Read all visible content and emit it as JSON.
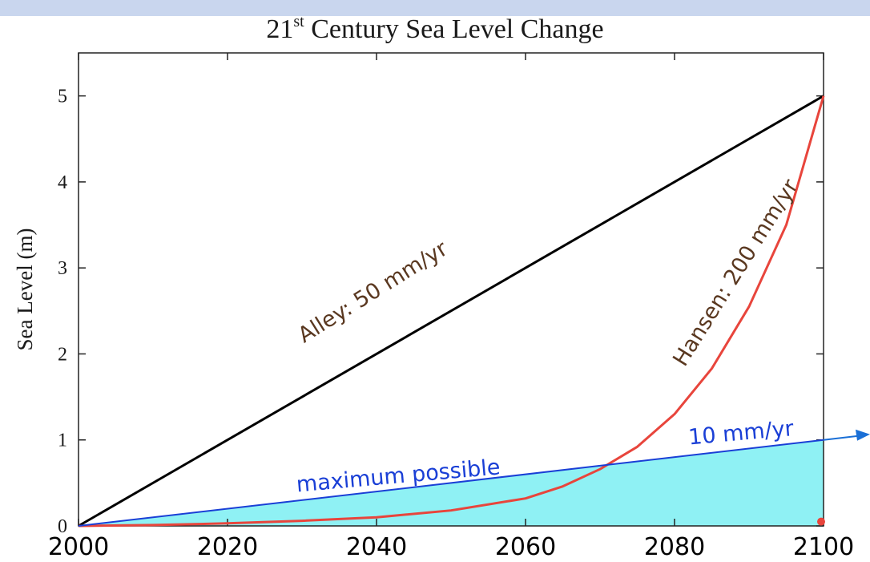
{
  "chart_data": {
    "type": "line",
    "title_main": "21",
    "title_sup": "st",
    "title_rest": " Century Sea Level Change",
    "ylabel": "Sea Level (m)",
    "xlabel": "",
    "xlim": [
      2000,
      2100
    ],
    "ylim": [
      0,
      5.5
    ],
    "x_ticks": [
      2000,
      2020,
      2040,
      2060,
      2080,
      2100
    ],
    "y_ticks": [
      0,
      1,
      2,
      3,
      4,
      5
    ],
    "grid": false,
    "series": [
      {
        "name": "Alley: 50 mm/yr",
        "color": "#000000",
        "x": [
          2000,
          2100
        ],
        "y": [
          0,
          5
        ]
      },
      {
        "name": "Hansen: 200 mm/yr",
        "color": "#e8453c",
        "x": [
          2000,
          2010,
          2020,
          2030,
          2040,
          2050,
          2060,
          2065,
          2070,
          2075,
          2080,
          2085,
          2090,
          2095,
          2100
        ],
        "y": [
          0,
          0.01,
          0.03,
          0.06,
          0.1,
          0.18,
          0.32,
          0.46,
          0.66,
          0.92,
          1.3,
          1.83,
          2.55,
          3.5,
          5.0
        ]
      },
      {
        "name": "10 mm/yr",
        "color": "#1a3fd6",
        "x": [
          2000,
          2100
        ],
        "y": [
          0,
          1.0
        ]
      }
    ],
    "shaded_region": {
      "label": "maximum possible",
      "color": "#8ff1f4",
      "x": [
        2000,
        2100
      ],
      "y_top": [
        0,
        1.0
      ]
    },
    "annotations": [
      {
        "text": "Alley: 50 mm/yr",
        "color": "#5a3820",
        "x": 2040,
        "y": 2.65,
        "rotate": -32
      },
      {
        "text": "Hansen: 200 mm/yr",
        "color": "#5a3820",
        "x": 2089,
        "y": 2.9,
        "rotate": -58
      },
      {
        "text": "maximum possible",
        "color": "#1a3fd6",
        "x": 2043,
        "y": 0.5,
        "rotate": -5
      },
      {
        "text": "10 mm/yr",
        "color": "#1a3fd6",
        "x": 2089,
        "y": 1.0,
        "rotate": -5
      }
    ],
    "endpoint_marker": {
      "x": 2100,
      "y": 0.05,
      "color": "#e8453c"
    }
  }
}
